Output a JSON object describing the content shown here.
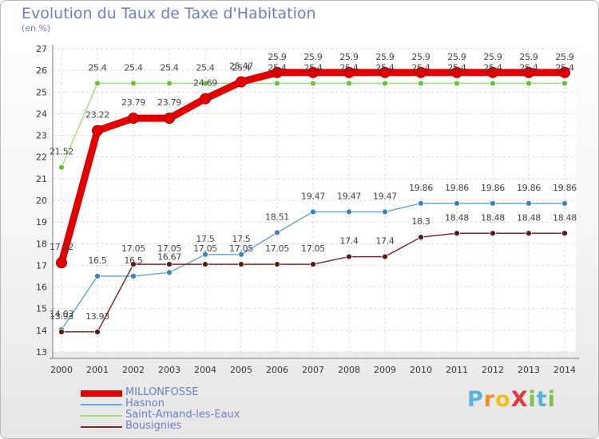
{
  "chart_data": {
    "type": "line",
    "title": "Evolution du Taux de Taxe d'Habitation",
    "subtitle": "(en %)",
    "x": [
      "2000",
      "2001",
      "2002",
      "2003",
      "2004",
      "2005",
      "2006",
      "2007",
      "2008",
      "2009",
      "2010",
      "2011",
      "2012",
      "2013",
      "2014"
    ],
    "ylim": [
      13,
      27
    ],
    "yticks": [
      13,
      14,
      15,
      16,
      17,
      18,
      19,
      20,
      21,
      22,
      23,
      24,
      25,
      26,
      27
    ],
    "grid": true,
    "legend_position": "bottom-left",
    "series": [
      {
        "name": "MILLONFOSSE",
        "color": "#e00000",
        "marker_color": "#e00000",
        "values": [
          17.12,
          23.22,
          23.79,
          23.79,
          24.69,
          25.47,
          25.9,
          25.9,
          25.9,
          25.9,
          25.9,
          25.9,
          25.9,
          25.9,
          25.9
        ],
        "labels": [
          "17.12",
          "23.22",
          "23.79",
          "23.79",
          "24.69",
          "25.47",
          "25.9",
          "25.9",
          "25.9",
          "25.9",
          "25.9",
          "25.9",
          "25.9",
          "25.9",
          "25.9"
        ]
      },
      {
        "name": "Hasnon",
        "color": "#6aa6d6",
        "marker_color": "#3d7fc1",
        "values": [
          14.03,
          16.5,
          16.5,
          16.67,
          17.5,
          17.5,
          18.51,
          19.47,
          19.47,
          19.47,
          19.86,
          19.86,
          19.86,
          19.86,
          19.86
        ],
        "labels": [
          "14.03",
          "16.5",
          "16.5",
          "16.67",
          "17.5",
          "17.5",
          "18.51",
          "19.47",
          "19.47",
          "19.47",
          "19.86",
          "19.86",
          "19.86",
          "19.86",
          "19.86"
        ]
      },
      {
        "name": "Saint-Amand-les-Eaux",
        "color": "#9fe07a",
        "marker_color": "#5fc23a",
        "values": [
          21.52,
          25.4,
          25.4,
          25.4,
          25.4,
          25.4,
          25.4,
          25.4,
          25.4,
          25.4,
          25.4,
          25.4,
          25.4,
          25.4,
          25.4
        ],
        "labels": [
          "21.52",
          "25.4",
          "25.4",
          "25.4",
          "25.4",
          "25.4",
          "25.4",
          "25.4",
          "25.4",
          "25.4",
          "25.4",
          "25.4",
          "25.4",
          "25.4",
          "25.4"
        ]
      },
      {
        "name": "Bousignies",
        "color": "#7a2a2a",
        "marker_color": "#5a1a1a",
        "values": [
          13.93,
          13.93,
          17.05,
          17.05,
          17.05,
          17.05,
          17.05,
          17.05,
          17.4,
          17.4,
          18.3,
          18.48,
          18.48,
          18.48,
          18.48
        ],
        "labels": [
          "13.93",
          "13.93",
          "17.05",
          "17.05",
          "17.05",
          "17.05",
          "17.05",
          "17.05",
          "17.4",
          "17.4",
          "18.3",
          "18.48",
          "18.48",
          "18.48",
          "18.48"
        ]
      }
    ]
  },
  "brand": {
    "text": "ProXiti",
    "letters": [
      {
        "ch": "P",
        "color": "#5ab0e0"
      },
      {
        "ch": "r",
        "color": "#f08a2a"
      },
      {
        "ch": "o",
        "color": "#f0c020"
      },
      {
        "ch": "X",
        "color": "#e03a3a"
      },
      {
        "ch": "i",
        "color": "#7cc24a"
      },
      {
        "ch": "t",
        "color": "#5ab0e0"
      },
      {
        "ch": "i",
        "color": "#7cc24a"
      }
    ]
  }
}
